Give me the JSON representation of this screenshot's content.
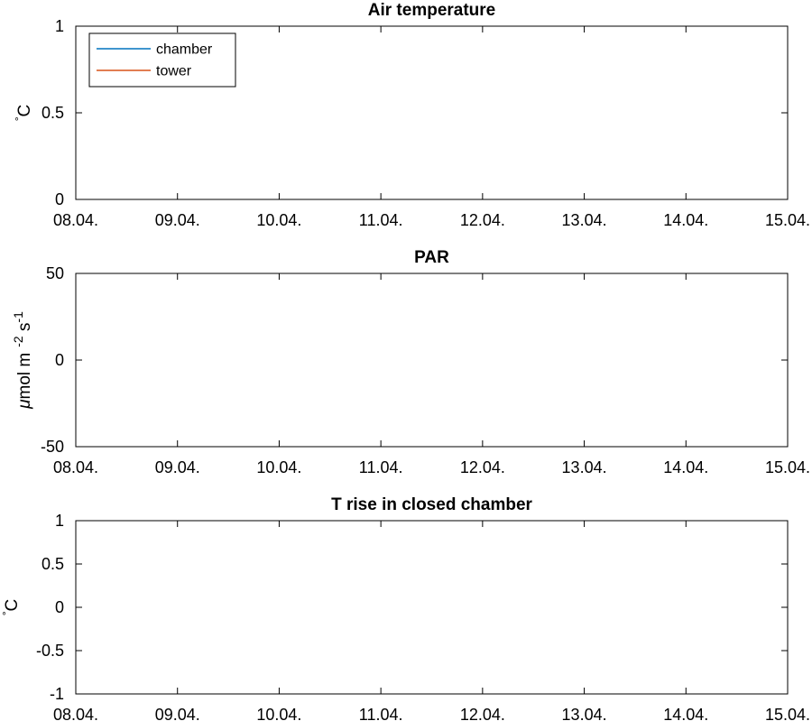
{
  "chart_data": [
    {
      "type": "line",
      "title": "Air temperature",
      "xlabel": "",
      "ylabel": "°C",
      "ylabel_parts": {
        "superscript": "°",
        "text": "C"
      },
      "x_ticks": [
        "08.04.",
        "09.04.",
        "10.04.",
        "11.04.",
        "12.04.",
        "13.04.",
        "14.04.",
        "15.04."
      ],
      "y_ticks": [
        "0",
        "0.5",
        "1"
      ],
      "ylim": [
        0,
        1
      ],
      "legend": {
        "position": "top-left",
        "entries": [
          {
            "name": "chamber",
            "color": "#0072bd"
          },
          {
            "name": "tower",
            "color": "#d95319"
          }
        ]
      },
      "series": [
        {
          "name": "chamber",
          "values": []
        },
        {
          "name": "tower",
          "values": []
        }
      ]
    },
    {
      "type": "line",
      "title": "PAR",
      "xlabel": "",
      "ylabel": "μmol m-2 s-1",
      "ylabel_parts": {
        "mu": "μ",
        "text1": "mol m",
        "sup1": "-2",
        "text2": " s",
        "sup2": "-1"
      },
      "x_ticks": [
        "08.04.",
        "09.04.",
        "10.04.",
        "11.04.",
        "12.04.",
        "13.04.",
        "14.04.",
        "15.04."
      ],
      "y_ticks": [
        "-50",
        "0",
        "50"
      ],
      "ylim": [
        -50,
        50
      ],
      "series": []
    },
    {
      "type": "line",
      "title": "T rise in closed chamber",
      "xlabel": "",
      "ylabel": "°C",
      "ylabel_parts": {
        "superscript": "°",
        "text": "C"
      },
      "x_ticks": [
        "08.04.",
        "09.04.",
        "10.04.",
        "11.04.",
        "12.04.",
        "13.04.",
        "14.04.",
        "15.04."
      ],
      "y_ticks": [
        "-1",
        "-0.5",
        "0",
        "0.5",
        "1"
      ],
      "ylim": [
        -1,
        1
      ],
      "series": []
    }
  ]
}
